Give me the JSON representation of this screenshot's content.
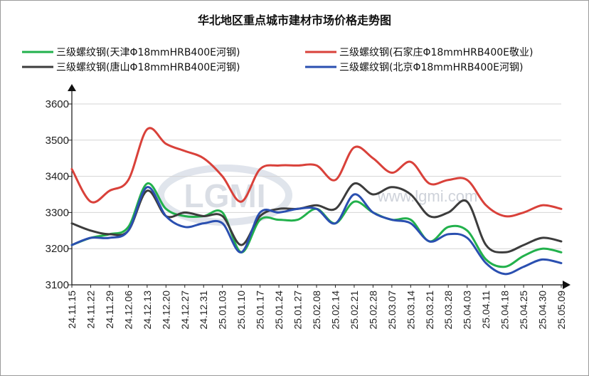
{
  "chart_data": {
    "type": "line",
    "title": "华北地区重点城市建材市场价格走势图",
    "xlabel": "",
    "ylabel": "",
    "ylim": [
      3100,
      3600
    ],
    "yticks": [
      3100,
      3200,
      3300,
      3400,
      3500,
      3600
    ],
    "grid": true,
    "legend_position": "top",
    "x": [
      "24.11.15",
      "24.11.22",
      "24.11.29",
      "24.12.06",
      "24.12.13",
      "24.12.20",
      "24.12.27",
      "24.12.31",
      "25.01.03",
      "25.01.10",
      "25.01.17",
      "25.01.24",
      "25.01.27",
      "25.02.08",
      "25.02.14",
      "25.02.21",
      "25.02.28",
      "25.03.07",
      "25.03.14",
      "25.03.21",
      "25.03.28",
      "25.04.03",
      "25.04.11",
      "25.04.18",
      "25.04.25",
      "25.04.30",
      "25.05.09"
    ],
    "series": [
      {
        "name": "三级螺纹钢(天津Φ18mmHRB400E河钢)",
        "color": "#22b14c",
        "values": [
          3210,
          3230,
          3240,
          3260,
          3380,
          3310,
          3290,
          3290,
          3300,
          3190,
          3280,
          3280,
          3280,
          3310,
          3270,
          3330,
          3300,
          3280,
          3280,
          3220,
          3260,
          3250,
          3170,
          3150,
          3180,
          3200,
          3190
        ]
      },
      {
        "name": "三级螺纹钢(石家庄Φ18mmHRB400E敬业)",
        "color": "#d9413a",
        "values": [
          3420,
          3330,
          3360,
          3390,
          3530,
          3490,
          3470,
          3450,
          3400,
          3330,
          3420,
          3430,
          3430,
          3430,
          3390,
          3480,
          3450,
          3410,
          3440,
          3380,
          3390,
          3390,
          3320,
          3290,
          3300,
          3320,
          3310
        ]
      },
      {
        "name": "三级螺纹钢(唐山Φ18mmHRB400E河钢)",
        "color": "#3c3c3c",
        "values": [
          3270,
          3250,
          3240,
          3250,
          3360,
          3290,
          3300,
          3290,
          3290,
          3210,
          3290,
          3310,
          3310,
          3320,
          3310,
          3380,
          3350,
          3370,
          3350,
          3290,
          3300,
          3330,
          3210,
          3190,
          3210,
          3230,
          3220
        ]
      },
      {
        "name": "三级螺纹钢(北京Φ18mmHRB400E河钢)",
        "color": "#2a4fb0",
        "values": [
          3210,
          3230,
          3230,
          3250,
          3370,
          3290,
          3260,
          3270,
          3270,
          3190,
          3300,
          3300,
          3310,
          3310,
          3270,
          3350,
          3300,
          3280,
          3270,
          3220,
          3240,
          3230,
          3160,
          3130,
          3150,
          3170,
          3160
        ]
      }
    ]
  },
  "watermark": {
    "logo": "LGMI",
    "url": "www.lgmi.com"
  }
}
